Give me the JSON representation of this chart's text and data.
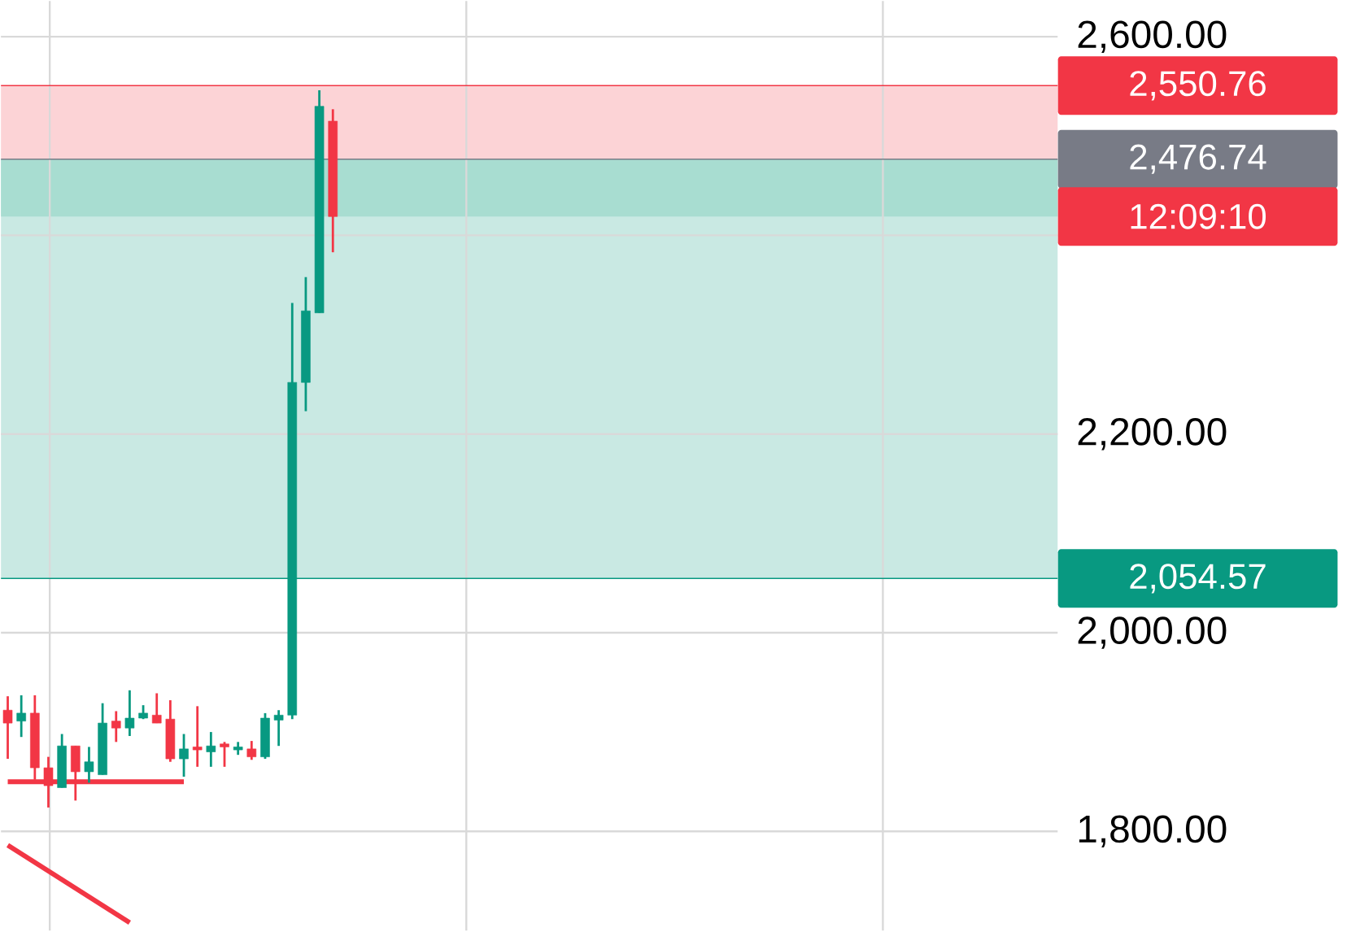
{
  "chart_data": {
    "type": "candlestick",
    "categories": [
      null,
      null,
      null,
      null,
      null,
      null,
      null,
      null,
      null,
      null,
      null,
      null,
      null,
      null,
      null,
      null,
      null,
      null,
      null,
      null,
      null,
      null,
      null,
      null,
      null,
      null,
      null,
      null,
      null,
      null,
      null,
      null,
      null,
      null,
      null,
      null,
      null,
      null,
      null,
      null,
      null,
      null,
      null,
      null,
      null,
      null,
      null,
      null,
      null,
      null,
      null,
      null,
      null,
      null,
      null,
      null,
      null,
      null,
      null,
      null,
      null,
      null,
      null,
      null,
      null,
      null,
      null,
      null,
      null,
      null,
      null,
      null,
      null,
      null,
      null,
      null,
      null,
      null
    ],
    "series": [
      {
        "type": "candlestick",
        "ohlc": [
          [
            1922,
            1936,
            1873,
            1909
          ],
          [
            1911,
            1937,
            1895,
            1919
          ],
          [
            1919,
            1937,
            1852,
            1864
          ],
          [
            1864,
            1875,
            1824,
            1846
          ],
          [
            1844,
            1898,
            1844,
            1886
          ],
          [
            1886,
            1886,
            1831,
            1860
          ],
          [
            1860,
            1885,
            1849,
            1870
          ],
          [
            1857,
            1929,
            1857,
            1909
          ],
          [
            1911,
            1921,
            1890,
            1904
          ],
          [
            1904,
            1942,
            1896,
            1914
          ],
          [
            1914,
            1927,
            1913,
            1919
          ],
          [
            1917,
            1939,
            1909,
            1909
          ],
          [
            1913,
            1932,
            1870,
            1873
          ],
          [
            1873,
            1898,
            1855,
            1883
          ],
          [
            1885,
            1926,
            1865,
            1882
          ],
          [
            1880,
            1900,
            1865,
            1886
          ],
          [
            1888,
            1890,
            1865,
            1885
          ],
          [
            1882,
            1890,
            1877,
            1885
          ],
          [
            1883,
            1891,
            1872,
            1875
          ],
          [
            1875,
            1919,
            1873,
            1914
          ],
          [
            1912,
            1922,
            1886,
            1917
          ],
          [
            1917,
            2332,
            1913,
            2252
          ],
          [
            2252,
            2358,
            2223,
            2324
          ],
          [
            2322,
            2546,
            2322,
            2530
          ],
          [
            2515,
            2527,
            2383,
            2419
          ],
          null,
          null,
          null,
          null,
          null,
          null,
          null,
          null,
          null,
          null,
          null,
          null,
          null,
          null,
          null,
          null,
          null,
          null,
          null,
          null,
          null,
          null,
          null,
          null,
          null,
          null,
          null,
          null,
          null,
          null,
          null,
          null,
          null,
          null,
          null,
          null,
          null,
          null,
          null,
          null,
          null,
          null,
          null,
          null,
          null,
          null,
          null,
          null,
          null,
          null,
          null,
          null,
          null
        ],
        "colors": [
          "#f23645",
          "#089981",
          "#f23645",
          "#f23645",
          "#089981",
          "#f23645",
          "#089981",
          "#089981",
          "#f23645",
          "#089981",
          "#089981",
          "#f23645",
          "#f23645",
          "#089981",
          "#f23645",
          "#089981",
          "#f23645",
          "#089981",
          "#f23645",
          "#089981",
          "#089981",
          "#089981",
          "#089981",
          "#089981",
          "#f23645",
          null,
          null,
          null,
          null,
          null,
          null,
          null,
          null,
          null,
          null,
          null,
          null,
          null,
          null,
          null,
          null,
          null,
          null,
          null,
          null,
          null,
          null,
          null,
          null,
          null,
          null,
          null,
          null,
          null,
          null,
          null,
          null,
          null,
          null,
          null,
          null,
          null,
          null,
          null,
          null,
          null,
          null,
          null,
          null,
          null,
          null,
          null,
          null,
          null,
          null,
          null,
          null,
          null
        ]
      },
      {
        "type": "line",
        "values": [
          1850,
          null,
          null,
          null,
          null,
          null,
          null,
          null,
          null,
          null,
          null,
          null,
          null,
          1850,
          null,
          null,
          null,
          null,
          null,
          null,
          null,
          null,
          null,
          null,
          null,
          null,
          null,
          null,
          null,
          null,
          null,
          null,
          null,
          null,
          null,
          null,
          null,
          null,
          null,
          null,
          null,
          null,
          null,
          null,
          null,
          null,
          null,
          null,
          null,
          null,
          null,
          null,
          null,
          null,
          null,
          null,
          null,
          null,
          null,
          null,
          null,
          null,
          null,
          null,
          null,
          null,
          null,
          null,
          null,
          null,
          null,
          null,
          null,
          null,
          null,
          null,
          null,
          null
        ],
        "color": "#f23645"
      },
      {
        "type": "line",
        "values": [
          1786,
          null,
          null,
          null,
          null,
          null,
          null,
          null,
          null,
          1708,
          null,
          null,
          null,
          null,
          null,
          null,
          null,
          null,
          null,
          null,
          null,
          null,
          null,
          null,
          null,
          null,
          null,
          null,
          null,
          null,
          null,
          null,
          null,
          null,
          null,
          null,
          null,
          null,
          null,
          null,
          null,
          null,
          null,
          null,
          null,
          null,
          null,
          null,
          null,
          null,
          null,
          null,
          null,
          null,
          null,
          null,
          null,
          null,
          null,
          null,
          null,
          null,
          null,
          null,
          null,
          null,
          null,
          null,
          null,
          null,
          null,
          null,
          null,
          null,
          null,
          null,
          null,
          null
        ],
        "color": "#f23645"
      }
    ],
    "ylim": [
      1700,
      2636
    ],
    "yticks": [
      {
        "value": 1800,
        "label": "1,800.00"
      },
      {
        "value": 2000,
        "label": "2,000.00"
      },
      {
        "value": 2200,
        "label": "2,200.00"
      },
      {
        "value": 2400,
        "label": null
      },
      {
        "value": 2600,
        "label": "2,600.00"
      }
    ],
    "tick_labels": "y",
    "grid": true,
    "bands": [
      {
        "axis": "y",
        "from": 2054.57,
        "to": 2476.74,
        "color": "#c9e9e3"
      },
      {
        "axis": "y",
        "from": 2419,
        "to": 2476.74,
        "color": "#a8ddd1"
      },
      {
        "axis": "y",
        "from": 2476.74,
        "to": 2550.76,
        "color": "#fcd3d6"
      }
    ],
    "ref_lines": [
      {
        "axis": "y",
        "value": 2550.76,
        "label": "2,550.76",
        "color": "#f23645"
      },
      {
        "axis": "y",
        "value": 2476.74,
        "label": "2,476.74",
        "color": "#787b86"
      },
      {
        "axis": "y",
        "value": 2054.57,
        "label": "2,054.57",
        "color": "#089981"
      }
    ],
    "annotations": [
      "12:09:10"
    ]
  }
}
